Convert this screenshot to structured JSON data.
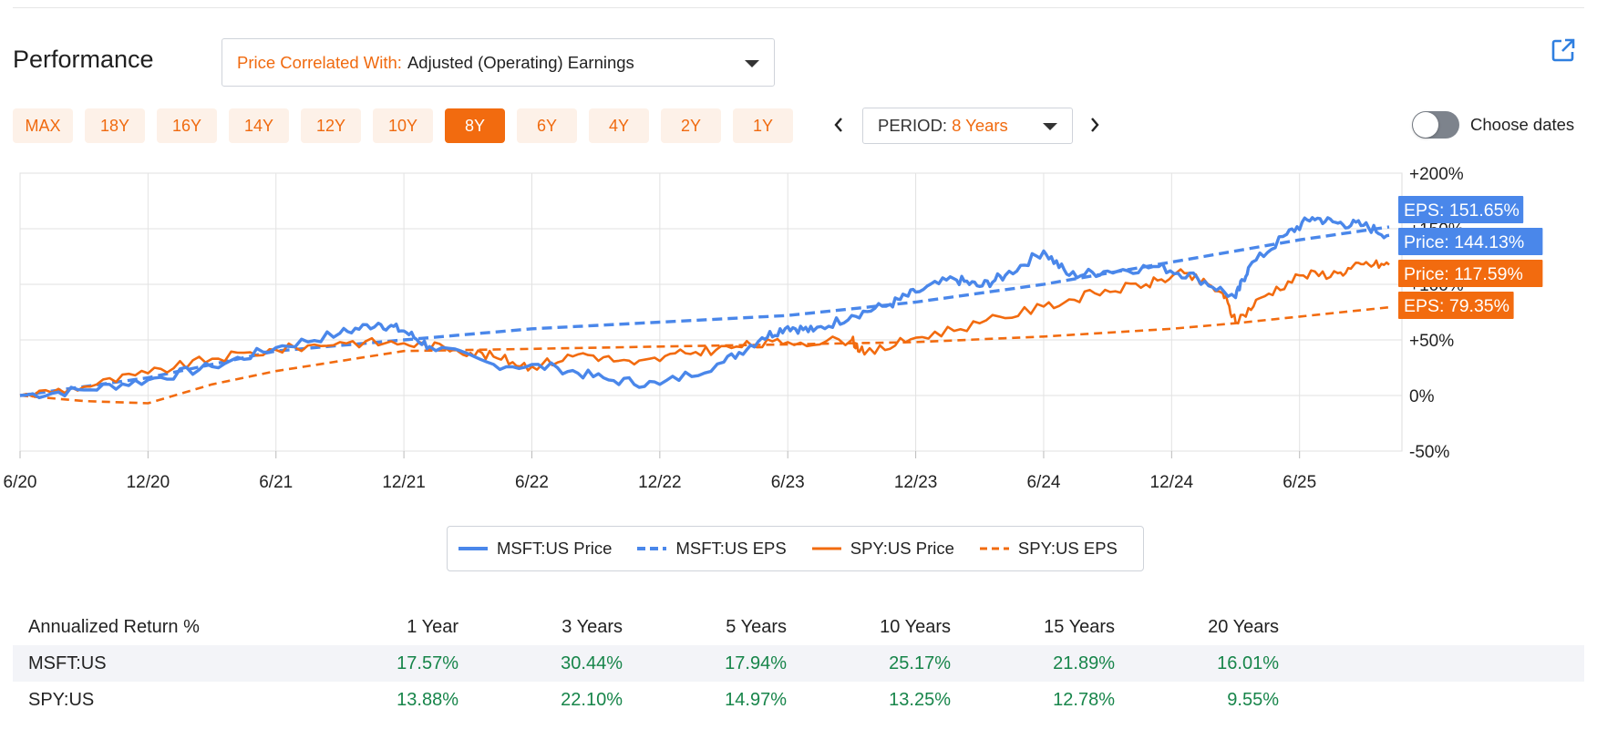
{
  "header": {
    "title": "Performance",
    "correlation_label": "Price Correlated With:",
    "correlation_value": "Adjusted (Operating) Earnings"
  },
  "range_buttons": [
    "MAX",
    "18Y",
    "16Y",
    "14Y",
    "12Y",
    "10Y",
    "8Y",
    "6Y",
    "4Y",
    "2Y",
    "1Y"
  ],
  "active_range": "8Y",
  "period": {
    "label": "PERIOD:",
    "value": "8 Years"
  },
  "choose_dates_label": "Choose dates",
  "colors": {
    "accent": "#f26b0f",
    "msft": "#4a87ea",
    "spy": "#f26b0f",
    "green": "#17854a"
  },
  "chart_data": {
    "type": "line",
    "title": "",
    "xlabel": "",
    "ylabel": "",
    "x_ticks": [
      "6/20",
      "12/20",
      "6/21",
      "12/21",
      "6/22",
      "12/22",
      "6/23",
      "12/23",
      "6/24",
      "12/24",
      "6/25"
    ],
    "y_ticks": [
      "+200%",
      "+150%",
      "+100%",
      "+50%",
      "0%",
      "-50%"
    ],
    "ylim": [
      -50,
      200
    ],
    "x_range_years": [
      0,
      5.4
    ],
    "series": [
      {
        "name": "MSFT:US Price",
        "style": "solid",
        "color": "#4a87ea",
        "end_label": "Price: 144.13%",
        "points": [
          [
            0,
            0
          ],
          [
            0.25,
            5
          ],
          [
            0.5,
            14
          ],
          [
            0.75,
            26
          ],
          [
            1.0,
            43
          ],
          [
            1.25,
            56
          ],
          [
            1.4,
            65
          ],
          [
            1.5,
            58
          ],
          [
            1.6,
            44
          ],
          [
            1.85,
            28
          ],
          [
            2.1,
            25
          ],
          [
            2.3,
            14
          ],
          [
            2.5,
            10
          ],
          [
            2.75,
            30
          ],
          [
            2.9,
            52
          ],
          [
            3.0,
            62
          ],
          [
            3.1,
            58
          ],
          [
            3.25,
            72
          ],
          [
            3.4,
            82
          ],
          [
            3.5,
            93
          ],
          [
            3.65,
            105
          ],
          [
            3.75,
            98
          ],
          [
            3.85,
            108
          ],
          [
            4.0,
            130
          ],
          [
            4.1,
            108
          ],
          [
            4.25,
            112
          ],
          [
            4.45,
            116
          ],
          [
            4.6,
            106
          ],
          [
            4.75,
            88
          ],
          [
            4.8,
            115
          ],
          [
            4.95,
            145
          ],
          [
            5.05,
            160
          ],
          [
            5.15,
            155
          ],
          [
            5.25,
            153
          ],
          [
            5.35,
            144.13
          ]
        ]
      },
      {
        "name": "MSFT:US EPS",
        "style": "dashed",
        "color": "#4a87ea",
        "end_label": "EPS: 151.65%",
        "points": [
          [
            0,
            0
          ],
          [
            0.5,
            16
          ],
          [
            1.0,
            40
          ],
          [
            1.5,
            50
          ],
          [
            2.0,
            60
          ],
          [
            2.5,
            66
          ],
          [
            3.0,
            72
          ],
          [
            3.5,
            84
          ],
          [
            4.0,
            100
          ],
          [
            4.5,
            120
          ],
          [
            5.0,
            140
          ],
          [
            5.35,
            151.65
          ]
        ]
      },
      {
        "name": "SPY:US Price",
        "style": "solid",
        "color": "#f26b0f",
        "end_label": "Price: 117.59%",
        "points": [
          [
            0,
            0
          ],
          [
            0.25,
            8
          ],
          [
            0.5,
            20
          ],
          [
            0.75,
            33
          ],
          [
            1.0,
            41
          ],
          [
            1.25,
            48
          ],
          [
            1.5,
            47
          ],
          [
            1.7,
            42
          ],
          [
            1.85,
            35
          ],
          [
            2.0,
            26
          ],
          [
            2.2,
            38
          ],
          [
            2.4,
            28
          ],
          [
            2.6,
            38
          ],
          [
            2.8,
            44
          ],
          [
            3.0,
            48
          ],
          [
            3.25,
            50
          ],
          [
            3.3,
            37
          ],
          [
            3.5,
            52
          ],
          [
            3.75,
            65
          ],
          [
            4.0,
            80
          ],
          [
            4.2,
            92
          ],
          [
            4.4,
            100
          ],
          [
            4.55,
            110
          ],
          [
            4.7,
            92
          ],
          [
            4.75,
            66
          ],
          [
            4.85,
            88
          ],
          [
            5.0,
            108
          ],
          [
            5.15,
            110
          ],
          [
            5.25,
            118
          ],
          [
            5.35,
            117.59
          ]
        ]
      },
      {
        "name": "SPY:US EPS",
        "style": "dashed",
        "color": "#f26b0f",
        "end_label": "EPS: 79.35%",
        "points": [
          [
            0,
            0
          ],
          [
            0.25,
            -5
          ],
          [
            0.5,
            -7
          ],
          [
            0.75,
            10
          ],
          [
            1.0,
            22
          ],
          [
            1.5,
            40
          ],
          [
            2.0,
            42
          ],
          [
            2.5,
            44
          ],
          [
            3.0,
            46
          ],
          [
            3.5,
            48
          ],
          [
            4.0,
            53
          ],
          [
            4.5,
            60
          ],
          [
            4.75,
            65
          ],
          [
            5.0,
            71
          ],
          [
            5.35,
            79.35
          ]
        ]
      }
    ],
    "legend": [
      "MSFT:US Price",
      "MSFT:US EPS",
      "SPY:US Price",
      "SPY:US EPS"
    ]
  },
  "returns": {
    "header_label": "Annualized Return %",
    "columns": [
      "1 Year",
      "3 Years",
      "5 Years",
      "10 Years",
      "15 Years",
      "20 Years"
    ],
    "rows": [
      {
        "name": "MSFT:US",
        "values": [
          "17.57%",
          "30.44%",
          "17.94%",
          "25.17%",
          "21.89%",
          "16.01%"
        ]
      },
      {
        "name": "SPY:US",
        "values": [
          "13.88%",
          "22.10%",
          "14.97%",
          "13.25%",
          "12.78%",
          "9.55%"
        ]
      }
    ]
  }
}
